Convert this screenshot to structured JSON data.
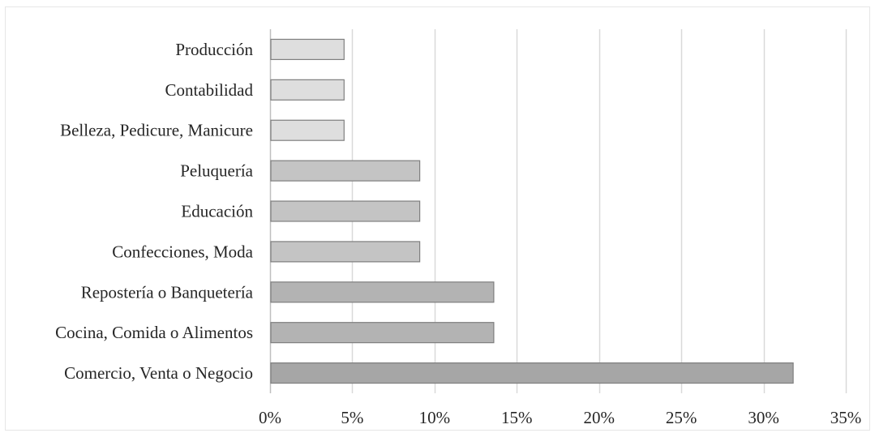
{
  "chart_data": {
    "type": "bar",
    "orientation": "horizontal",
    "categories": [
      "Comercio, Venta o Negocio",
      "Cocina, Comida o Alimentos",
      "Repostería o Banquetería",
      "Confecciones, Moda",
      "Educación",
      "Peluquería",
      "Belleza, Pedicure, Manicure",
      "Contabilidad",
      "Producción"
    ],
    "values": [
      31.8,
      13.6,
      13.6,
      9.1,
      9.1,
      9.1,
      4.5,
      4.5,
      4.5
    ],
    "xlim": [
      0,
      35
    ],
    "x_ticks": [
      0,
      5,
      10,
      15,
      20,
      25,
      30,
      35
    ],
    "x_tick_labels": [
      "0%",
      "5%",
      "10%",
      "15%",
      "20%",
      "25%",
      "30%",
      "35%"
    ],
    "title": "",
    "xlabel": "",
    "ylabel": "",
    "grid": "vertical",
    "legend": "none",
    "bar_fills": [
      "#a6a6a6",
      "#b3b3b3",
      "#b3b3b3",
      "#c4c4c4",
      "#c4c4c4",
      "#c4c4c4",
      "#dedede",
      "#dedede",
      "#dedede"
    ],
    "bar_stroke": "#7f7f7f",
    "grid_color": "#d9d9d9"
  }
}
